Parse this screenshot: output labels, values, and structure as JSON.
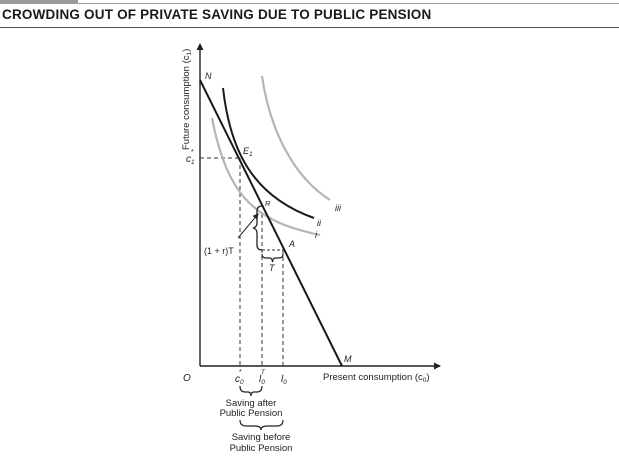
{
  "title": "CROWDING OUT OF PRIVATE SAVING DUE TO PUBLIC PENSION",
  "axes": {
    "y_label": "Future consumption (c",
    "y_label_sub": "1",
    "y_label_close": ")",
    "x_label": "Present consumption (c",
    "x_label_sub": "0",
    "x_label_close": ")",
    "origin": "O"
  },
  "points": {
    "N": "N",
    "M": "M",
    "E": "E",
    "E_sub": "1",
    "R": "R",
    "A": "A"
  },
  "curves": {
    "i": "i",
    "ii": "ii",
    "iii": "iii"
  },
  "ticks": {
    "c1": "c",
    "c1_sub": "1",
    "c1_sup": "*",
    "c0": "c",
    "c0_sub": "0",
    "c0_sup": "*",
    "l0T": "l",
    "l0T_sub": "0",
    "l0T_sup": "T",
    "l0": "l",
    "l0_sub": "0"
  },
  "annotations": {
    "pension_value": "(1 + r)T",
    "tax": "T",
    "saving_after_line1": "Saving after",
    "saving_after_line2": "Public Pension",
    "saving_before_line1": "Saving before",
    "saving_before_line2": "Public Pension"
  },
  "colors": {
    "budget_line": "#1a1a1a",
    "curve_ii": "#1a1a1a",
    "curve_i": "#b5b5b5",
    "curve_iii": "#b5b5b5",
    "axis": "#222222",
    "dashed": "#333333"
  }
}
